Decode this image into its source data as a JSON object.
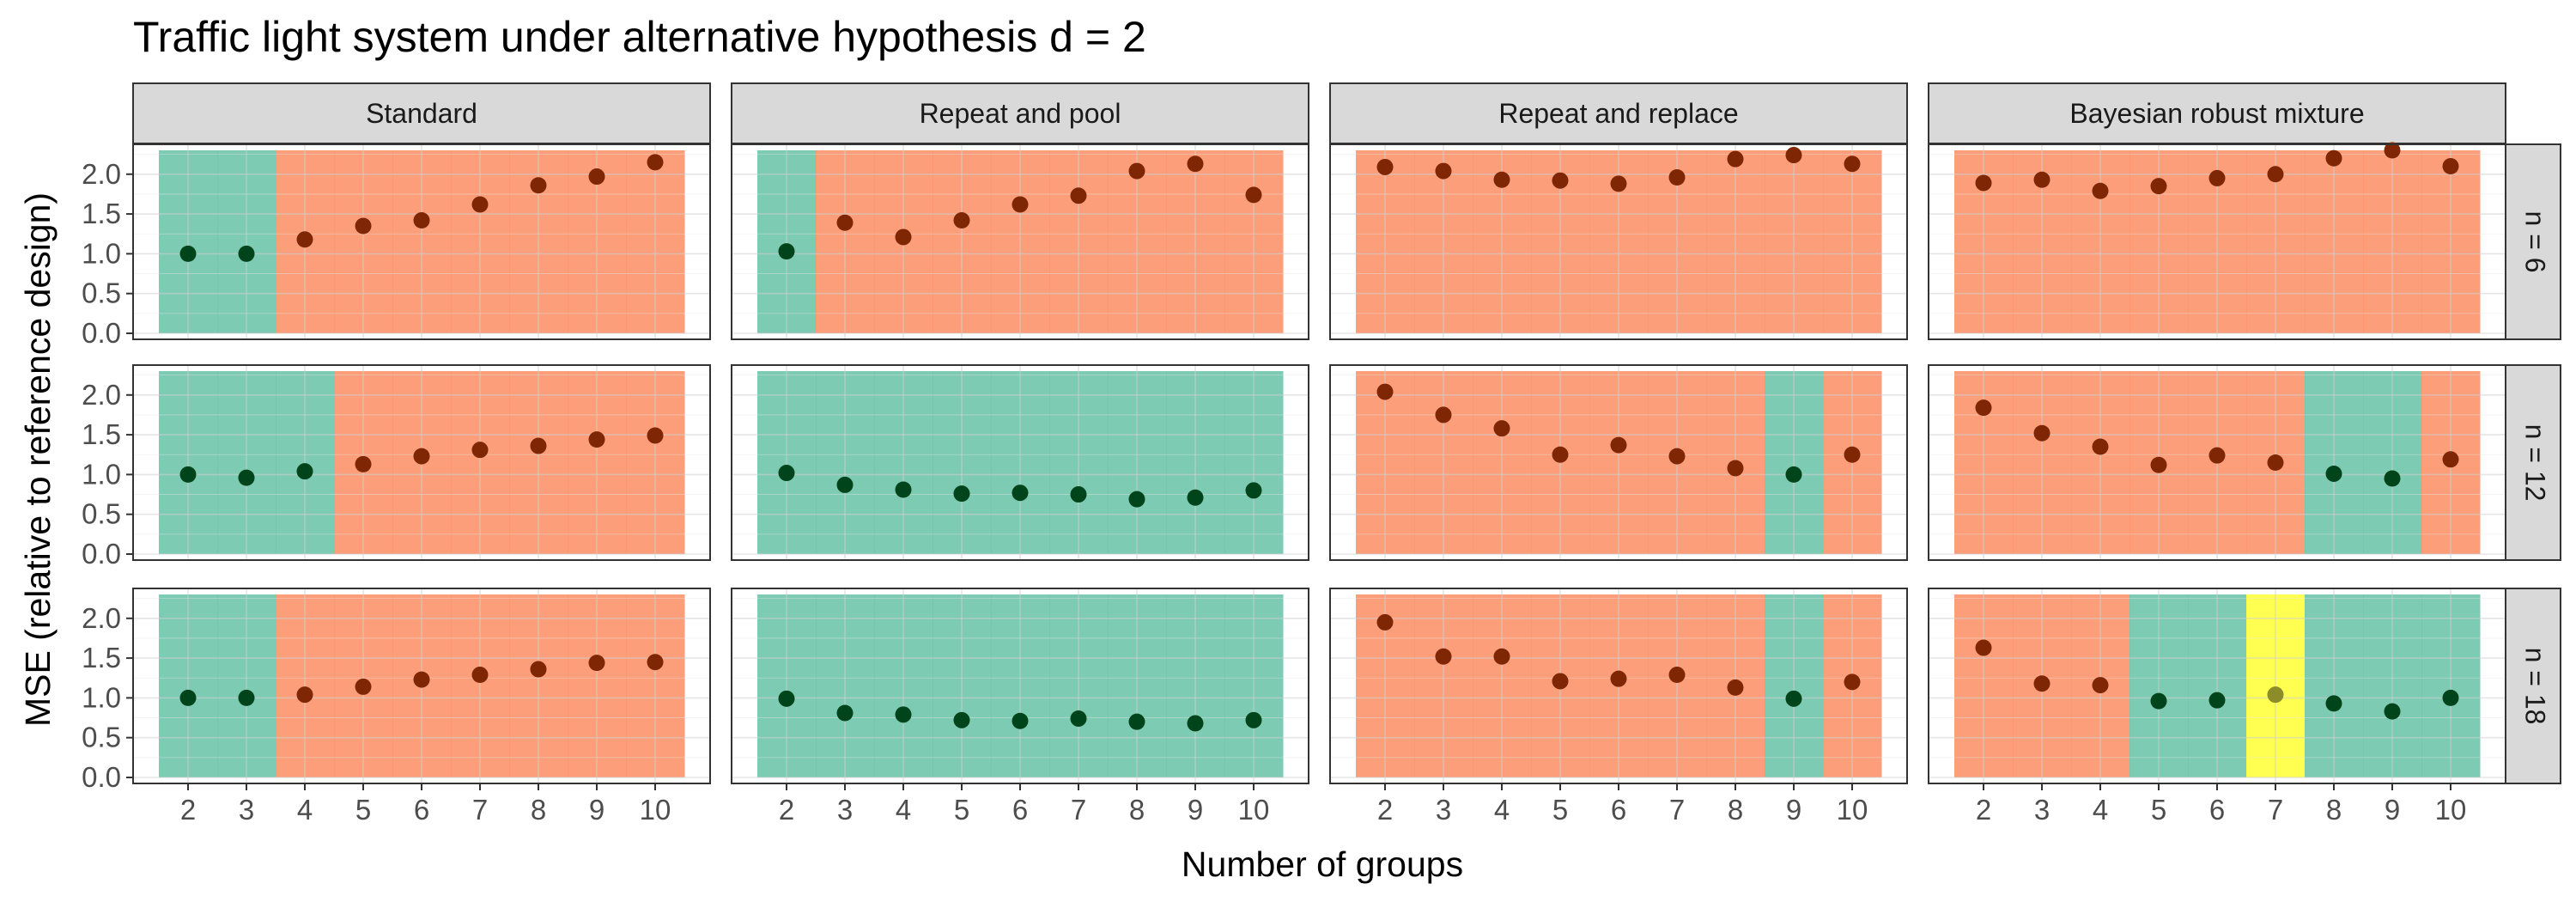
{
  "title": "Traffic light system under alternative hypothesis d = 2",
  "chart_data": {
    "type": "scatter",
    "title": "Traffic light system under alternative hypothesis d = 2",
    "xlabel": "Number of groups",
    "ylabel": "MSE (relative to reference design)",
    "x_ticks": [
      "2",
      "3",
      "4",
      "5",
      "6",
      "7",
      "8",
      "9",
      "10"
    ],
    "y_ticks": [
      "0.0",
      "0.5",
      "1.0",
      "1.5",
      "2.0"
    ],
    "xlim": [
      1.5,
      10.5
    ],
    "ylim": [
      0,
      2.3
    ],
    "grid": true,
    "legend": "none",
    "colors": {
      "green": "#66c2a5",
      "orange": "#fc8d62",
      "yellow": "#ffff33",
      "green_point": "#00441b",
      "orange_point": "#7f2704",
      "yellow_point": "#8c8c2a"
    },
    "column_facets": [
      "Standard",
      "Repeat and pool",
      "Repeat and replace",
      "Bayesian robust mixture"
    ],
    "row_facets": [
      "n = 6",
      "n = 12",
      "n = 18"
    ],
    "x": [
      2,
      3,
      4,
      5,
      6,
      7,
      8,
      9,
      10
    ],
    "panels": [
      {
        "row": "n = 6",
        "col": "Standard",
        "values": [
          1.0,
          1.0,
          1.18,
          1.35,
          1.42,
          1.62,
          1.86,
          1.97,
          2.15
        ],
        "status": [
          "green",
          "green",
          "orange",
          "orange",
          "orange",
          "orange",
          "orange",
          "orange",
          "orange"
        ]
      },
      {
        "row": "n = 6",
        "col": "Repeat and pool",
        "values": [
          1.03,
          1.39,
          1.21,
          1.42,
          1.62,
          1.73,
          2.04,
          2.13,
          1.74
        ],
        "status": [
          "green",
          "orange",
          "orange",
          "orange",
          "orange",
          "orange",
          "orange",
          "orange",
          "orange"
        ]
      },
      {
        "row": "n = 6",
        "col": "Repeat and replace",
        "values": [
          2.09,
          2.04,
          1.93,
          1.92,
          1.88,
          1.96,
          2.19,
          2.24,
          2.13
        ],
        "status": [
          "orange",
          "orange",
          "orange",
          "orange",
          "orange",
          "orange",
          "orange",
          "orange",
          "orange"
        ]
      },
      {
        "row": "n = 6",
        "col": "Bayesian robust mixture",
        "values": [
          1.89,
          1.93,
          1.79,
          1.85,
          1.95,
          2.0,
          2.2,
          2.3,
          2.1
        ],
        "status": [
          "orange",
          "orange",
          "orange",
          "orange",
          "orange",
          "orange",
          "orange",
          "orange",
          "orange"
        ]
      },
      {
        "row": "n = 12",
        "col": "Standard",
        "values": [
          1.0,
          0.96,
          1.04,
          1.13,
          1.23,
          1.31,
          1.36,
          1.44,
          1.49
        ],
        "status": [
          "green",
          "green",
          "green",
          "orange",
          "orange",
          "orange",
          "orange",
          "orange",
          "orange"
        ]
      },
      {
        "row": "n = 12",
        "col": "Repeat and pool",
        "values": [
          1.02,
          0.87,
          0.81,
          0.76,
          0.77,
          0.75,
          0.69,
          0.71,
          0.8
        ],
        "status": [
          "green",
          "green",
          "green",
          "green",
          "green",
          "green",
          "green",
          "green",
          "green"
        ]
      },
      {
        "row": "n = 12",
        "col": "Repeat and replace",
        "values": [
          2.04,
          1.75,
          1.58,
          1.25,
          1.37,
          1.23,
          1.08,
          1.0,
          1.25
        ],
        "status": [
          "orange",
          "orange",
          "orange",
          "orange",
          "orange",
          "orange",
          "orange",
          "green",
          "orange"
        ]
      },
      {
        "row": "n = 12",
        "col": "Bayesian robust mixture",
        "values": [
          1.84,
          1.52,
          1.35,
          1.12,
          1.24,
          1.15,
          1.01,
          0.95,
          1.19
        ],
        "status": [
          "orange",
          "orange",
          "orange",
          "orange",
          "orange",
          "orange",
          "green",
          "green",
          "orange"
        ]
      },
      {
        "row": "n = 18",
        "col": "Standard",
        "values": [
          1.0,
          1.0,
          1.04,
          1.14,
          1.23,
          1.29,
          1.36,
          1.44,
          1.45
        ],
        "status": [
          "green",
          "green",
          "orange",
          "orange",
          "orange",
          "orange",
          "orange",
          "orange",
          "orange"
        ]
      },
      {
        "row": "n = 18",
        "col": "Repeat and pool",
        "values": [
          0.99,
          0.81,
          0.79,
          0.72,
          0.71,
          0.74,
          0.7,
          0.68,
          0.72
        ],
        "status": [
          "green",
          "green",
          "green",
          "green",
          "green",
          "green",
          "green",
          "green",
          "green"
        ]
      },
      {
        "row": "n = 18",
        "col": "Repeat and replace",
        "values": [
          1.95,
          1.52,
          1.52,
          1.21,
          1.24,
          1.29,
          1.13,
          0.99,
          1.2
        ],
        "status": [
          "orange",
          "orange",
          "orange",
          "orange",
          "orange",
          "orange",
          "orange",
          "green",
          "orange"
        ]
      },
      {
        "row": "n = 18",
        "col": "Bayesian robust mixture",
        "values": [
          1.63,
          1.18,
          1.16,
          0.96,
          0.97,
          1.04,
          0.93,
          0.83,
          1.0
        ],
        "status": [
          "orange",
          "orange",
          "orange",
          "green",
          "green",
          "yellow",
          "green",
          "green",
          "green"
        ]
      }
    ]
  }
}
